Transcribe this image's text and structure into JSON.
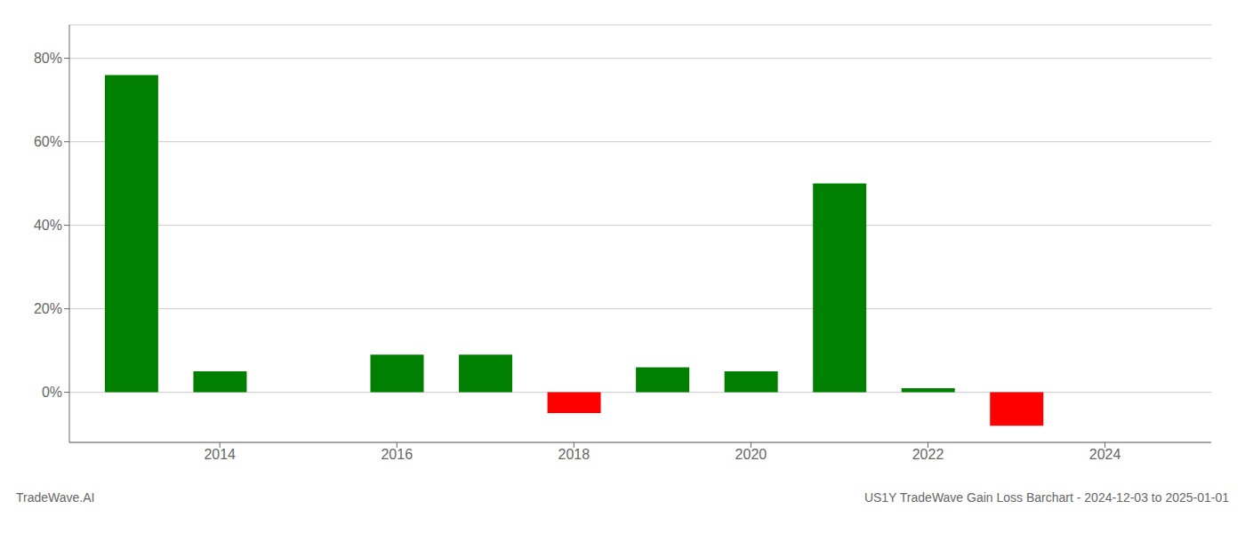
{
  "chart_data": {
    "type": "bar",
    "title": "US1Y TradeWave Gain Loss Barchart - 2024-12-03 to 2025-01-01",
    "annotations": [
      "TradeWave.AI"
    ],
    "x": [
      2013,
      2014,
      2016,
      2017,
      2018,
      2019,
      2020,
      2021,
      2022,
      2023
    ],
    "values": [
      0.76,
      0.05,
      0.09,
      0.09,
      -0.05,
      0.06,
      0.05,
      0.5,
      0.01,
      -0.08
    ],
    "colors": [
      "#008000",
      "#008000",
      "#008000",
      "#008000",
      "#ff0000",
      "#008000",
      "#008000",
      "#008000",
      "#008000",
      "#ff0000"
    ],
    "ylim": [
      -0.12,
      0.88
    ],
    "yticks": [
      {
        "value": 0.0,
        "label": "0%"
      },
      {
        "value": 0.2,
        "label": "20%"
      },
      {
        "value": 0.4,
        "label": "40%"
      },
      {
        "value": 0.6,
        "label": "60%"
      },
      {
        "value": 0.8,
        "label": "80%"
      }
    ],
    "xlim": [
      2012.3,
      2025.2
    ],
    "xticks": [
      2014,
      2016,
      2018,
      2020,
      2022,
      2024
    ],
    "grid": true
  }
}
